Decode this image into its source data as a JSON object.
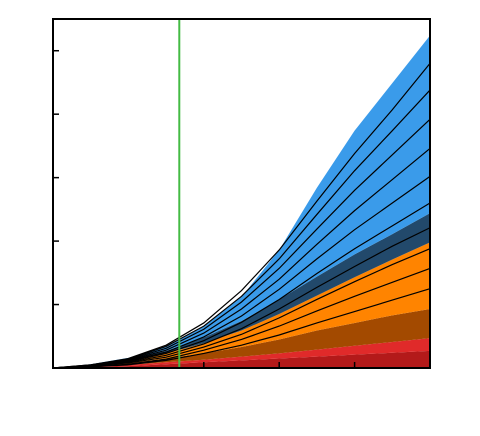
{
  "chart_data": {
    "type": "area",
    "title": "",
    "xlabel": "",
    "ylabel": "",
    "xlim": [
      0,
      100
    ],
    "ylim": [
      0,
      5.5
    ],
    "grid": false,
    "legend": "none",
    "x_ticks": [
      40,
      60,
      80
    ],
    "y_ticks": [
      1,
      2,
      3,
      4,
      5
    ],
    "x_tick_labels": [],
    "y_tick_labels": [],
    "vertical_marker": {
      "x": 33.5,
      "color": "#44bb44"
    },
    "x": [
      0,
      10,
      20,
      30,
      40,
      50,
      60,
      70,
      80,
      90,
      100
    ],
    "bands": [
      {
        "color": "#b31a1a",
        "values": [
          0,
          0.01,
          0.03,
          0.06,
          0.09,
          0.12,
          0.15,
          0.18,
          0.21,
          0.24,
          0.27
        ]
      },
      {
        "color": "#e02a2a",
        "values": [
          0,
          0.01,
          0.02,
          0.03,
          0.04,
          0.06,
          0.08,
          0.11,
          0.14,
          0.17,
          0.2
        ]
      },
      {
        "color": "#a34a00",
        "values": [
          0,
          0.01,
          0.03,
          0.06,
          0.1,
          0.15,
          0.22,
          0.3,
          0.36,
          0.42,
          0.46
        ]
      },
      {
        "color": "#ff8400",
        "values": [
          0,
          0.01,
          0.03,
          0.08,
          0.16,
          0.26,
          0.4,
          0.55,
          0.72,
          0.88,
          1.05
        ]
      },
      {
        "color": "#22496b",
        "values": [
          0,
          0.01,
          0.02,
          0.04,
          0.09,
          0.15,
          0.23,
          0.3,
          0.36,
          0.4,
          0.46
        ]
      },
      {
        "color": "#3a9bea",
        "values": [
          0,
          0.01,
          0.03,
          0.06,
          0.17,
          0.38,
          0.78,
          1.4,
          1.95,
          2.38,
          2.8
        ]
      }
    ],
    "lines": [
      {
        "color": "#000000",
        "values": [
          0,
          0.02,
          0.05,
          0.12,
          0.23,
          0.36,
          0.52,
          0.71,
          0.89,
          1.07,
          1.25
        ]
      },
      {
        "color": "#000000",
        "values": [
          0,
          0.02,
          0.06,
          0.14,
          0.28,
          0.45,
          0.66,
          0.9,
          1.13,
          1.35,
          1.57
        ]
      },
      {
        "color": "#000000",
        "values": [
          0,
          0.03,
          0.08,
          0.17,
          0.33,
          0.53,
          0.79,
          1.08,
          1.36,
          1.63,
          1.88
        ]
      },
      {
        "color": "#000000",
        "values": [
          0,
          0.03,
          0.09,
          0.2,
          0.38,
          0.62,
          0.93,
          1.27,
          1.6,
          1.92,
          2.21
        ]
      },
      {
        "color": "#000000",
        "values": [
          0,
          0.03,
          0.1,
          0.23,
          0.43,
          0.72,
          1.08,
          1.49,
          1.88,
          2.24,
          2.6
        ]
      },
      {
        "color": "#000000",
        "values": [
          0,
          0.04,
          0.11,
          0.25,
          0.49,
          0.82,
          1.24,
          1.72,
          2.18,
          2.6,
          3.02
        ]
      },
      {
        "color": "#000000",
        "values": [
          0,
          0.04,
          0.12,
          0.28,
          0.55,
          0.93,
          1.4,
          1.95,
          2.48,
          2.97,
          3.46
        ]
      },
      {
        "color": "#000000",
        "values": [
          0,
          0.04,
          0.13,
          0.31,
          0.61,
          1.04,
          1.57,
          2.19,
          2.8,
          3.36,
          3.92
        ]
      },
      {
        "color": "#000000",
        "values": [
          0,
          0.05,
          0.14,
          0.34,
          0.66,
          1.13,
          1.72,
          2.42,
          3.11,
          3.74,
          4.38
        ]
      },
      {
        "color": "#000000",
        "values": [
          0,
          0.05,
          0.15,
          0.36,
          0.71,
          1.22,
          1.86,
          2.63,
          3.38,
          4.07,
          4.8
        ]
      }
    ]
  }
}
